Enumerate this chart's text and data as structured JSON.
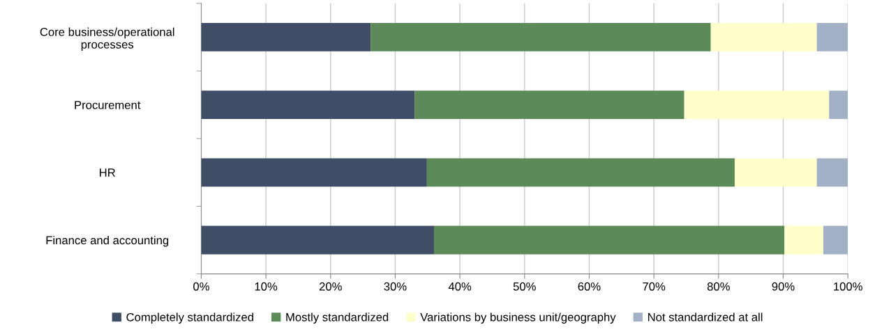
{
  "chart_data": {
    "type": "bar",
    "orientation": "horizontal",
    "stacked": true,
    "categories": [
      "Core business/operational\nprocesses",
      "Procurement",
      "HR",
      "Finance and accounting"
    ],
    "series": [
      {
        "name": "Completely standardized",
        "color": "#3f4e66",
        "values": [
          26.2,
          33.0,
          34.9,
          36.0
        ]
      },
      {
        "name": "Mostly standardized",
        "color": "#5c8a58",
        "values": [
          52.6,
          41.7,
          47.6,
          54.2
        ]
      },
      {
        "name": "Variations by business unit/geography",
        "color": "#ffffcc",
        "values": [
          16.4,
          22.4,
          12.7,
          6.0
        ]
      },
      {
        "name": "Not standardized at all",
        "color": "#a3b1c6",
        "values": [
          4.8,
          2.9,
          4.8,
          3.8
        ]
      }
    ],
    "xlim": [
      0,
      100
    ],
    "xticks": [
      {
        "value": 0,
        "label": "0%"
      },
      {
        "value": 10,
        "label": "10%"
      },
      {
        "value": 20,
        "label": "20%"
      },
      {
        "value": 30,
        "label": "30%"
      },
      {
        "value": 40,
        "label": "40%"
      },
      {
        "value": 50,
        "label": "50%"
      },
      {
        "value": 60,
        "label": "60%"
      },
      {
        "value": 70,
        "label": "70%"
      },
      {
        "value": 80,
        "label": "80%"
      },
      {
        "value": 90,
        "label": "90%"
      },
      {
        "value": 100,
        "label": "100%"
      }
    ],
    "grid": "x",
    "legend": "bottom"
  }
}
